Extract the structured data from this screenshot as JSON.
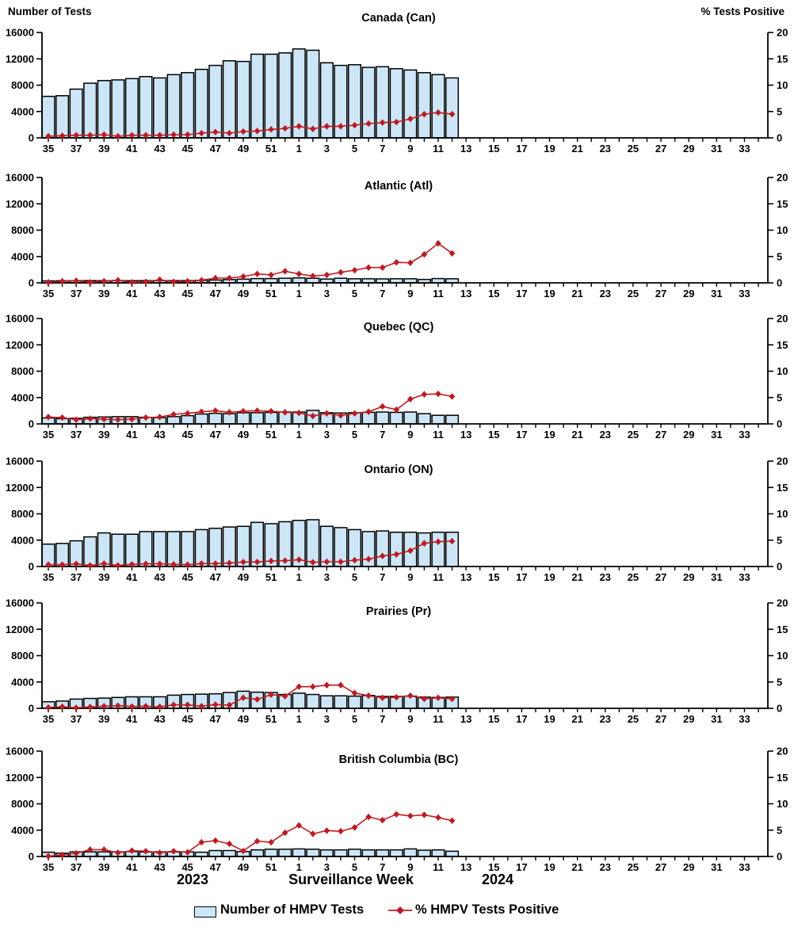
{
  "headers": {
    "left": "Number of Tests",
    "right": "% Tests Positive"
  },
  "x_axis": {
    "title": "Surveillance Week",
    "year_left": "2023",
    "year_right": "2024",
    "tick_labels": [
      35,
      37,
      39,
      41,
      43,
      45,
      47,
      49,
      51,
      1,
      3,
      5,
      7,
      9,
      11,
      13,
      15,
      17,
      19,
      21,
      23,
      25,
      27,
      29,
      31,
      33
    ]
  },
  "axes": {
    "y_left_ticks": [
      0,
      4000,
      8000,
      12000,
      16000
    ],
    "y_right_ticks": [
      0,
      5,
      10,
      15,
      20
    ],
    "y_left_max": 16000,
    "y_right_max": 20
  },
  "legend": {
    "tests": "Number of HMPV Tests",
    "pct": "% HMPV Tests Positive"
  },
  "colors": {
    "bar_fill": "#CDE6F7",
    "bar_border": "#000000",
    "line": "#C1191F"
  },
  "chart_data": [
    {
      "type": "bar+line",
      "title": "Canada (Can)",
      "slug": "canada",
      "weeks": [
        35,
        36,
        37,
        38,
        39,
        40,
        41,
        42,
        43,
        44,
        45,
        46,
        47,
        48,
        49,
        50,
        51,
        52,
        1,
        2,
        3,
        4,
        5,
        6,
        7,
        8,
        9,
        10,
        11,
        12
      ],
      "tests": [
        6300,
        6400,
        7400,
        8300,
        8700,
        8800,
        9000,
        9300,
        9100,
        9600,
        9900,
        10400,
        11000,
        11700,
        11600,
        12700,
        12700,
        12900,
        13500,
        13300,
        11400,
        11000,
        11100,
        10700,
        10800,
        10500,
        10300,
        9900,
        9600,
        9100
      ],
      "pct_positive": [
        0.3,
        0.4,
        0.5,
        0.5,
        0.6,
        0.3,
        0.5,
        0.5,
        0.5,
        0.6,
        0.6,
        0.9,
        1.1,
        0.9,
        1.2,
        1.3,
        1.6,
        1.8,
        2.2,
        1.7,
        2.2,
        2.2,
        2.4,
        2.7,
        2.9,
        3.0,
        3.6,
        4.5,
        4.8,
        4.5
      ]
    },
    {
      "type": "bar+line",
      "title": "Atlantic (Atl)",
      "slug": "atlantic",
      "weeks": [
        35,
        36,
        37,
        38,
        39,
        40,
        41,
        42,
        43,
        44,
        45,
        46,
        47,
        48,
        49,
        50,
        51,
        52,
        1,
        2,
        3,
        4,
        5,
        6,
        7,
        8,
        9,
        10,
        11,
        12
      ],
      "tests": [
        300,
        320,
        330,
        340,
        330,
        350,
        330,
        340,
        350,
        340,
        350,
        380,
        430,
        500,
        560,
        650,
        650,
        700,
        750,
        700,
        580,
        700,
        620,
        620,
        600,
        620,
        620,
        520,
        650,
        620
      ],
      "pct_positive": [
        0.1,
        0.3,
        0.4,
        0.1,
        0.3,
        0.5,
        0.1,
        0.2,
        0.6,
        0.2,
        0.3,
        0.5,
        0.9,
        0.9,
        1.2,
        1.7,
        1.5,
        2.2,
        1.7,
        1.3,
        1.5,
        2.0,
        2.4,
        2.9,
        2.9,
        3.9,
        3.8,
        5.4,
        7.5,
        5.6
      ]
    },
    {
      "type": "bar+line",
      "title": "Quebec (QC)",
      "slug": "quebec",
      "weeks": [
        35,
        36,
        37,
        38,
        39,
        40,
        41,
        42,
        43,
        44,
        45,
        46,
        47,
        48,
        49,
        50,
        51,
        52,
        1,
        2,
        3,
        4,
        5,
        6,
        7,
        8,
        9,
        10,
        11,
        12
      ],
      "tests": [
        900,
        800,
        850,
        1000,
        1050,
        1100,
        1100,
        1000,
        950,
        1100,
        1250,
        1500,
        1600,
        1550,
        1700,
        1700,
        1750,
        1800,
        1800,
        2050,
        1700,
        1650,
        1700,
        1750,
        1800,
        1750,
        1800,
        1550,
        1300,
        1300
      ],
      "pct_positive": [
        1.3,
        1.2,
        0.8,
        1.0,
        0.9,
        0.8,
        0.9,
        1.2,
        1.3,
        1.8,
        2.0,
        2.3,
        2.5,
        2.2,
        2.4,
        2.5,
        2.4,
        2.2,
        2.1,
        1.5,
        2.0,
        1.6,
        2.0,
        2.3,
        3.3,
        2.7,
        4.7,
        5.6,
        5.7,
        5.2
      ]
    },
    {
      "type": "bar+line",
      "title": "Ontario (ON)",
      "slug": "ontario",
      "weeks": [
        35,
        36,
        37,
        38,
        39,
        40,
        41,
        42,
        43,
        44,
        45,
        46,
        47,
        48,
        49,
        50,
        51,
        52,
        1,
        2,
        3,
        4,
        5,
        6,
        7,
        8,
        9,
        10,
        11,
        12
      ],
      "tests": [
        3400,
        3500,
        3900,
        4500,
        5100,
        4900,
        4900,
        5300,
        5300,
        5300,
        5300,
        5600,
        5800,
        6000,
        6100,
        6700,
        6500,
        6800,
        7000,
        7100,
        6100,
        5900,
        5600,
        5300,
        5400,
        5200,
        5200,
        5100,
        5200,
        5200
      ],
      "pct_positive": [
        0.35,
        0.35,
        0.5,
        0.2,
        0.55,
        0.2,
        0.4,
        0.5,
        0.5,
        0.4,
        0.35,
        0.55,
        0.55,
        0.65,
        0.85,
        0.85,
        1.05,
        1.1,
        1.3,
        0.8,
        0.9,
        0.9,
        1.2,
        1.4,
        2.0,
        2.3,
        3.0,
        4.4,
        4.7,
        4.8
      ]
    },
    {
      "type": "bar+line",
      "title": "Prairies (Pr)",
      "slug": "prairies",
      "weeks": [
        35,
        36,
        37,
        38,
        39,
        40,
        41,
        42,
        43,
        44,
        45,
        46,
        47,
        48,
        49,
        50,
        51,
        52,
        1,
        2,
        3,
        4,
        5,
        6,
        7,
        8,
        9,
        10,
        11,
        12
      ],
      "tests": [
        1000,
        1100,
        1400,
        1500,
        1550,
        1650,
        1750,
        1750,
        1750,
        2000,
        2100,
        2150,
        2200,
        2400,
        2600,
        2450,
        2400,
        2100,
        2300,
        2100,
        1900,
        1900,
        1850,
        1950,
        1800,
        1800,
        1850,
        1700,
        1650,
        1700
      ],
      "pct_positive": [
        0.15,
        0.3,
        0.1,
        0.25,
        0.4,
        0.5,
        0.35,
        0.4,
        0.3,
        0.65,
        0.65,
        0.4,
        0.7,
        0.6,
        2.0,
        1.7,
        2.6,
        2.3,
        4.1,
        4.1,
        4.4,
        4.4,
        2.9,
        2.4,
        2.0,
        2.1,
        2.4,
        1.8,
        2.0,
        1.8
      ]
    },
    {
      "type": "bar+line",
      "title": "British Columbia (BC)",
      "slug": "british-columbia",
      "weeks": [
        35,
        36,
        37,
        38,
        39,
        40,
        41,
        42,
        43,
        44,
        45,
        46,
        47,
        48,
        49,
        50,
        51,
        52,
        1,
        2,
        3,
        4,
        5,
        6,
        7,
        8,
        9,
        10,
        11,
        12
      ],
      "tests": [
        650,
        500,
        700,
        700,
        700,
        700,
        750,
        700,
        700,
        700,
        700,
        650,
        900,
        900,
        750,
        1000,
        1100,
        1100,
        1150,
        1100,
        1000,
        1000,
        1100,
        1000,
        1000,
        1000,
        1150,
        950,
        1000,
        800
      ],
      "pct_positive": [
        0.05,
        0.3,
        0.6,
        1.3,
        1.3,
        0.7,
        1.1,
        1.0,
        0.7,
        1.0,
        0.8,
        2.7,
        3.0,
        2.4,
        1.05,
        2.9,
        2.7,
        4.5,
        5.9,
        4.3,
        4.9,
        4.8,
        5.5,
        7.5,
        6.9,
        8.0,
        7.7,
        7.9,
        7.4,
        6.8
      ]
    }
  ]
}
